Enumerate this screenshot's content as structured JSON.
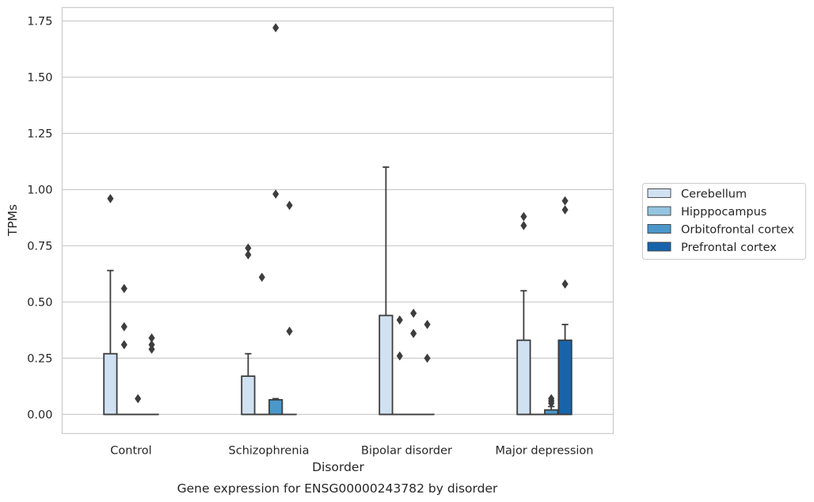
{
  "caption": "Gene expression for ENSG00000243782 by disorder",
  "chart_data": {
    "type": "box",
    "title": "",
    "xlabel": "Disorder",
    "ylabel": "TPMs",
    "ylim": [
      -0.085,
      1.81
    ],
    "yticks": [
      0.0,
      0.25,
      0.5,
      0.75,
      1.0,
      1.25,
      1.5,
      1.75
    ],
    "ytick_labels": [
      "0.00",
      "0.25",
      "0.50",
      "0.75",
      "1.00",
      "1.25",
      "1.50",
      "1.75"
    ],
    "grid": true,
    "legend_position": "right",
    "categories": [
      "Control",
      "Schizophrenia",
      "Bipolar disorder",
      "Major depression"
    ],
    "series": [
      {
        "name": "Cerebellum",
        "color": "#d0e1f2",
        "boxes": [
          {
            "min": 0.0,
            "q1": 0.0,
            "median": 0.0,
            "q3": 0.27,
            "max": 0.64,
            "outliers": [
              0.96
            ]
          },
          {
            "min": 0.0,
            "q1": 0.0,
            "median": 0.0,
            "q3": 0.17,
            "max": 0.27,
            "outliers": [
              0.74,
              0.71
            ]
          },
          {
            "min": 0.0,
            "q1": 0.0,
            "median": 0.0,
            "q3": 0.44,
            "max": 1.1,
            "outliers": []
          },
          {
            "min": 0.0,
            "q1": 0.0,
            "median": 0.0,
            "q3": 0.33,
            "max": 0.55,
            "outliers": [
              0.88,
              0.84
            ]
          }
        ]
      },
      {
        "name": "Hipppocampus",
        "color": "#94c4df",
        "boxes": [
          {
            "min": 0.0,
            "q1": 0.0,
            "median": 0.0,
            "q3": 0.0,
            "max": 0.0,
            "outliers": [
              0.56,
              0.39,
              0.31
            ]
          },
          {
            "min": 0.0,
            "q1": 0.0,
            "median": 0.0,
            "q3": 0.0,
            "max": 0.0,
            "outliers": [
              0.61
            ]
          },
          {
            "min": 0.0,
            "q1": 0.0,
            "median": 0.0,
            "q3": 0.0,
            "max": 0.0,
            "outliers": [
              0.42,
              0.26
            ]
          },
          {
            "min": 0.0,
            "q1": 0.0,
            "median": 0.0,
            "q3": 0.0,
            "max": 0.0,
            "outliers": []
          }
        ]
      },
      {
        "name": "Orbitofrontal cortex",
        "color": "#4a98c9",
        "boxes": [
          {
            "min": 0.0,
            "q1": 0.0,
            "median": 0.0,
            "q3": 0.0,
            "max": 0.0,
            "outliers": [
              0.07
            ]
          },
          {
            "min": 0.0,
            "q1": 0.0,
            "median": 0.0,
            "q3": 0.065,
            "max": 0.07,
            "outliers": [
              1.72,
              0.98
            ]
          },
          {
            "min": 0.0,
            "q1": 0.0,
            "median": 0.0,
            "q3": 0.0,
            "max": 0.0,
            "outliers": [
              0.45,
              0.36
            ]
          },
          {
            "min": 0.0,
            "q1": 0.0,
            "median": 0.0,
            "q3": 0.02,
            "max": 0.035,
            "outliers": [
              0.07,
              0.06,
              0.05
            ]
          }
        ]
      },
      {
        "name": "Prefrontal cortex",
        "color": "#1764ab",
        "boxes": [
          {
            "min": 0.0,
            "q1": 0.0,
            "median": 0.0,
            "q3": 0.0,
            "max": 0.0,
            "outliers": [
              0.34,
              0.31,
              0.29
            ]
          },
          {
            "min": 0.0,
            "q1": 0.0,
            "median": 0.0,
            "q3": 0.0,
            "max": 0.0,
            "outliers": [
              0.93,
              0.37
            ]
          },
          {
            "min": 0.0,
            "q1": 0.0,
            "median": 0.0,
            "q3": 0.0,
            "max": 0.0,
            "outliers": [
              0.4,
              0.25
            ]
          },
          {
            "min": 0.0,
            "q1": 0.0,
            "median": 0.0,
            "q3": 0.33,
            "max": 0.4,
            "outliers": [
              0.95,
              0.91,
              0.58
            ]
          }
        ]
      }
    ]
  }
}
